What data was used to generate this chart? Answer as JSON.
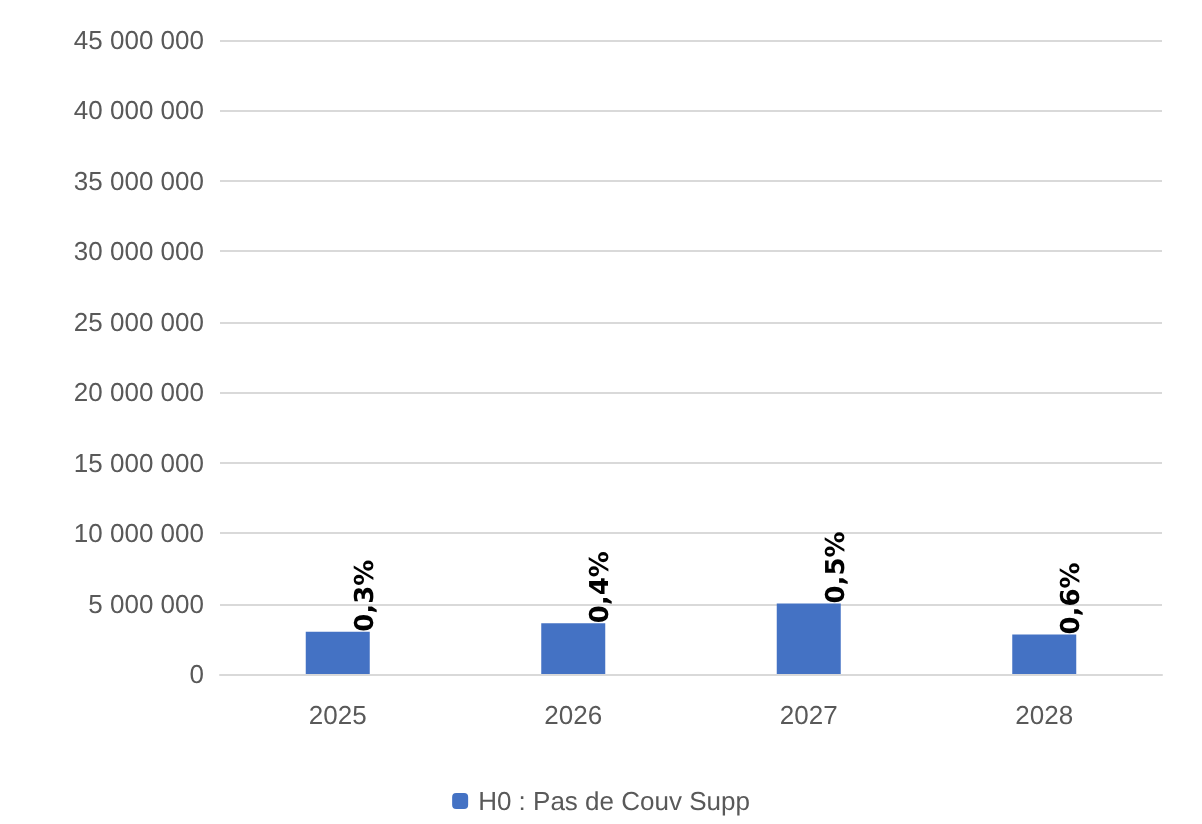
{
  "chart_data": {
    "type": "bar",
    "categories": [
      "2025",
      "2026",
      "2027",
      "2028"
    ],
    "series": [
      {
        "name": "H0 : Pas de Couv Supp",
        "color": "#4472c4",
        "values": [
          3000000,
          3600000,
          5000000,
          2800000
        ]
      }
    ],
    "annotations": [
      {
        "text": "0,3%",
        "x": "2025",
        "y": 3000000
      },
      {
        "text": "0,4%",
        "x": "2026",
        "y": 3600000
      },
      {
        "text": "0,5%",
        "x": "2027",
        "y": 5000000
      },
      {
        "text": "0,6%",
        "x": "2028",
        "y": 2800000
      }
    ],
    "ylim": [
      0,
      45000000
    ],
    "yticks": [
      0,
      5000000,
      10000000,
      15000000,
      20000000,
      25000000,
      30000000,
      35000000,
      40000000,
      45000000
    ],
    "grid": "y",
    "legend": "bottom"
  }
}
